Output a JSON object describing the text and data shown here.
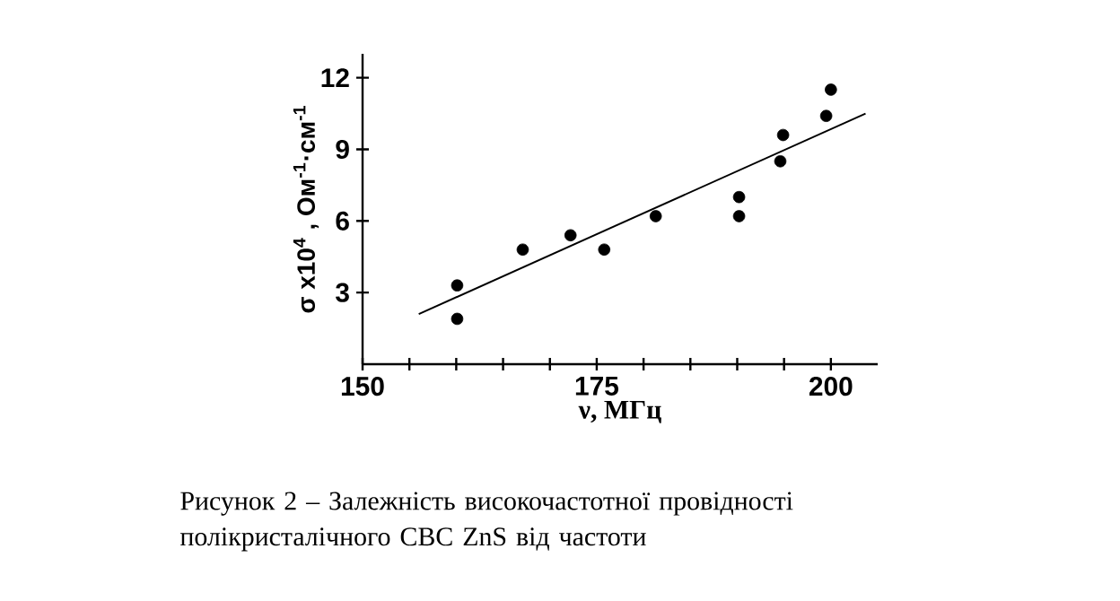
{
  "chart_data": {
    "type": "scatter",
    "xlabel": "ν, МГц",
    "ylabel": "σ x10$^{4}$ , Ом$^{-1}$·см$^{-1}$",
    "annotations": [
      "Рисунок 2 – Залежність високочастотної провідності полікристалічного СВС ZnS від частоти"
    ],
    "xlim": [
      150,
      205
    ],
    "ylim": [
      0,
      13
    ],
    "xticks": [
      150,
      {
        "value": 155,
        "label": null
      },
      {
        "value": 160,
        "label": null
      },
      {
        "value": 165,
        "label": null
      },
      {
        "value": 170,
        "label": null
      },
      175,
      {
        "value": 180,
        "label": null
      },
      {
        "value": 185,
        "label": null
      },
      {
        "value": 190,
        "label": null
      },
      {
        "value": 195,
        "label": null
      },
      200
    ],
    "yticks": [
      3,
      6,
      9,
      12
    ],
    "grid": false,
    "series": [
      {
        "marker": "circle",
        "color": "#000000",
        "x": [
          160.1,
          160.1,
          167.1,
          172.2,
          175.8,
          181.3,
          190.2,
          190.2,
          194.6,
          194.9,
          199.5,
          200.0
        ],
        "values": [
          1.9,
          3.3,
          4.8,
          5.4,
          4.8,
          6.2,
          6.2,
          7.0,
          8.5,
          9.6,
          10.4,
          11.5
        ]
      },
      {
        "type": "line",
        "marker": "none",
        "line_style": "solid",
        "color": "#000000",
        "x": [
          156.0,
          203.7
        ],
        "values": [
          2.1,
          10.5
        ]
      }
    ]
  }
}
